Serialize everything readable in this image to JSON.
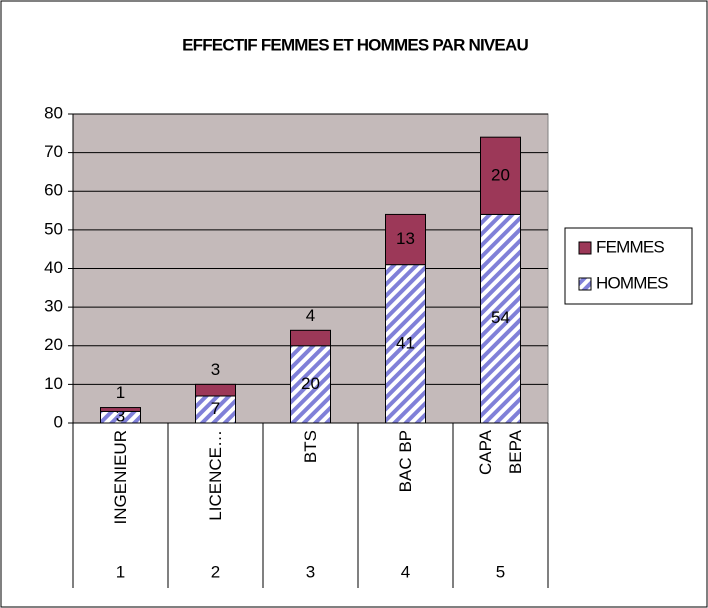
{
  "chart_data": {
    "type": "stacked_bar",
    "title": "EFFECTIF FEMMES ET HOMMES PAR NIVEAU",
    "categories": [
      "INGENIEUR",
      "LICENCE…",
      "BTS",
      "BAC BP",
      "CAPA BEPA"
    ],
    "category_groups": [
      "1",
      "2",
      "3",
      "4",
      "5"
    ],
    "series": [
      {
        "name": "HOMMES",
        "color": "#8080d8",
        "pattern": "diagonal-stripes",
        "values": [
          3,
          7,
          20,
          41,
          54
        ]
      },
      {
        "name": "FEMMES",
        "color": "#9c3858",
        "values": [
          1,
          3,
          4,
          13,
          20
        ]
      }
    ],
    "ylim": [
      0,
      80
    ],
    "yticks": [
      0,
      10,
      20,
      30,
      40,
      50,
      60,
      70,
      80
    ],
    "grid": true,
    "legend": "right"
  }
}
